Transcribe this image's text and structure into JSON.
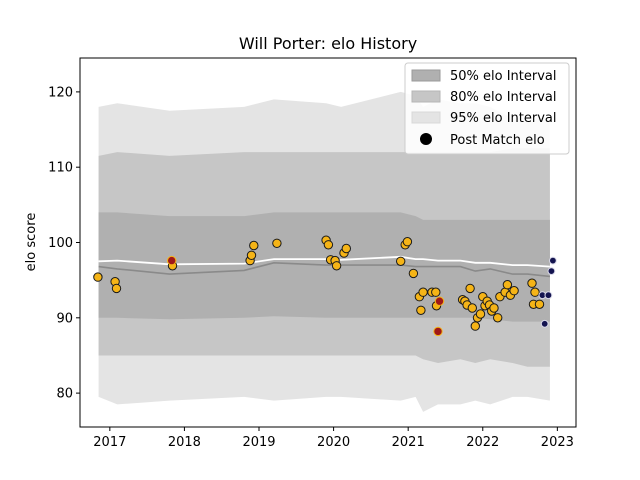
{
  "chart_data": {
    "type": "scatter",
    "title": "Will Porter: elo History",
    "xlabel": "",
    "ylabel": "elo score",
    "xlim": [
      2016.6,
      2023.25
    ],
    "ylim": [
      75.5,
      124.5
    ],
    "xticks": [
      2017,
      2018,
      2019,
      2020,
      2021,
      2022,
      2023
    ],
    "yticks": [
      80,
      90,
      100,
      110,
      120
    ],
    "grid": false,
    "legend_position": "top-right",
    "legend": [
      {
        "label": "50% elo Interval",
        "kind": "band",
        "color": "#b0b0b0"
      },
      {
        "label": "80% elo Interval",
        "kind": "band",
        "color": "#c6c6c6"
      },
      {
        "label": "95% elo Interval",
        "kind": "band",
        "color": "#e4e4e4"
      },
      {
        "label": "Post Match elo",
        "kind": "marker",
        "color": "#000000"
      }
    ],
    "colors": {
      "band95": "#e4e4e4",
      "band80": "#c6c6c6",
      "band50": "#b0b0b0",
      "median_line": "#8a8a8a",
      "mean_line": "#ffffff",
      "point_fill": "#f5b417",
      "point_edge": "#1a1a1a",
      "highlight_fill": "#a01818",
      "highlight_edge": "#f5b417",
      "latest_fill": "#141450"
    },
    "bands": {
      "x": [
        2016.85,
        2017.1,
        2017.8,
        2018.8,
        2019.2,
        2019.9,
        2020.1,
        2020.9,
        2021.1,
        2021.2,
        2021.4,
        2021.7,
        2021.9,
        2022.1,
        2022.4,
        2022.6,
        2022.9
      ],
      "p95_low": [
        79.5,
        78.5,
        79,
        79.5,
        79,
        79.5,
        79.5,
        79,
        79.5,
        77.5,
        78.5,
        78.5,
        79,
        78.5,
        79.5,
        79.5,
        79
      ],
      "p95_high": [
        118,
        118.5,
        117.5,
        118,
        119,
        118.5,
        118,
        120,
        119.5,
        118,
        119,
        118.5,
        118.5,
        118,
        116.5,
        116.5,
        116.5
      ],
      "p80_low": [
        85,
        85,
        85,
        85,
        85,
        85,
        85,
        85,
        85,
        84.5,
        84,
        84.5,
        84,
        84.5,
        84,
        83.5,
        83.5
      ],
      "p80_high": [
        111.5,
        112,
        111.5,
        112,
        112,
        112,
        112,
        112,
        112,
        112,
        112,
        112,
        112,
        112,
        112.5,
        112.5,
        112.5
      ],
      "p50_low": [
        90,
        90,
        89.8,
        90,
        90.2,
        90,
        90,
        90,
        90,
        90,
        90,
        90,
        90,
        89.8,
        89.5,
        89.5,
        89.5
      ],
      "p50_high": [
        104,
        104,
        103.5,
        103.5,
        104,
        104,
        104,
        104,
        103.5,
        103,
        103,
        103,
        103,
        103,
        103,
        103,
        103
      ],
      "median": [
        96.8,
        96.5,
        95.8,
        96.3,
        97.3,
        97,
        97,
        97,
        96.8,
        96.8,
        96.8,
        96.8,
        96.2,
        96.5,
        95.8,
        95.8,
        95.5
      ],
      "mean": [
        97.5,
        97.6,
        97.1,
        97.2,
        97.8,
        97.8,
        97.7,
        98.1,
        97.8,
        97.8,
        97.6,
        97.6,
        97.3,
        97.3,
        97,
        97,
        96.8
      ]
    },
    "points": [
      {
        "x": 2016.84,
        "y": 95.4
      },
      {
        "x": 2017.07,
        "y": 94.8
      },
      {
        "x": 2017.09,
        "y": 93.9
      },
      {
        "x": 2017.84,
        "y": 96.9
      },
      {
        "x": 2017.83,
        "y": 97.6,
        "style": "highlight"
      },
      {
        "x": 2018.88,
        "y": 97.6
      },
      {
        "x": 2018.9,
        "y": 98.3
      },
      {
        "x": 2018.93,
        "y": 99.6
      },
      {
        "x": 2019.24,
        "y": 99.9
      },
      {
        "x": 2019.9,
        "y": 100.3
      },
      {
        "x": 2019.93,
        "y": 99.7
      },
      {
        "x": 2019.96,
        "y": 97.7
      },
      {
        "x": 2020.02,
        "y": 97.6
      },
      {
        "x": 2020.04,
        "y": 96.9
      },
      {
        "x": 2020.14,
        "y": 98.6
      },
      {
        "x": 2020.17,
        "y": 99.2
      },
      {
        "x": 2020.9,
        "y": 97.5
      },
      {
        "x": 2020.96,
        "y": 99.7
      },
      {
        "x": 2020.99,
        "y": 100.1
      },
      {
        "x": 2021.07,
        "y": 95.9
      },
      {
        "x": 2021.15,
        "y": 92.8
      },
      {
        "x": 2021.17,
        "y": 91
      },
      {
        "x": 2021.2,
        "y": 93.4
      },
      {
        "x": 2021.32,
        "y": 93.4
      },
      {
        "x": 2021.37,
        "y": 93.4
      },
      {
        "x": 2021.38,
        "y": 91.6
      },
      {
        "x": 2021.4,
        "y": 88.2,
        "style": "highlight"
      },
      {
        "x": 2021.42,
        "y": 92.2,
        "style": "highlight"
      },
      {
        "x": 2021.73,
        "y": 92.4
      },
      {
        "x": 2021.76,
        "y": 92.2
      },
      {
        "x": 2021.79,
        "y": 91.7
      },
      {
        "x": 2021.83,
        "y": 93.9
      },
      {
        "x": 2021.86,
        "y": 91.3
      },
      {
        "x": 2021.9,
        "y": 88.9
      },
      {
        "x": 2021.93,
        "y": 90
      },
      {
        "x": 2021.97,
        "y": 90.5
      },
      {
        "x": 2022.0,
        "y": 92.8
      },
      {
        "x": 2022.03,
        "y": 91.6
      },
      {
        "x": 2022.06,
        "y": 92.2
      },
      {
        "x": 2022.09,
        "y": 91.7
      },
      {
        "x": 2022.12,
        "y": 90.9
      },
      {
        "x": 2022.15,
        "y": 91.3
      },
      {
        "x": 2022.2,
        "y": 90
      },
      {
        "x": 2022.23,
        "y": 92.8
      },
      {
        "x": 2022.3,
        "y": 93.4
      },
      {
        "x": 2022.33,
        "y": 94.4
      },
      {
        "x": 2022.37,
        "y": 93
      },
      {
        "x": 2022.42,
        "y": 93.6
      },
      {
        "x": 2022.66,
        "y": 94.6
      },
      {
        "x": 2022.68,
        "y": 91.8
      },
      {
        "x": 2022.7,
        "y": 93.4
      },
      {
        "x": 2022.76,
        "y": 91.8
      },
      {
        "x": 2022.8,
        "y": 93,
        "style": "latest"
      },
      {
        "x": 2022.83,
        "y": 89.2,
        "style": "latest"
      },
      {
        "x": 2022.88,
        "y": 93,
        "style": "latest"
      },
      {
        "x": 2022.92,
        "y": 96.2,
        "style": "latest"
      },
      {
        "x": 2022.94,
        "y": 97.6,
        "style": "latest"
      }
    ]
  }
}
